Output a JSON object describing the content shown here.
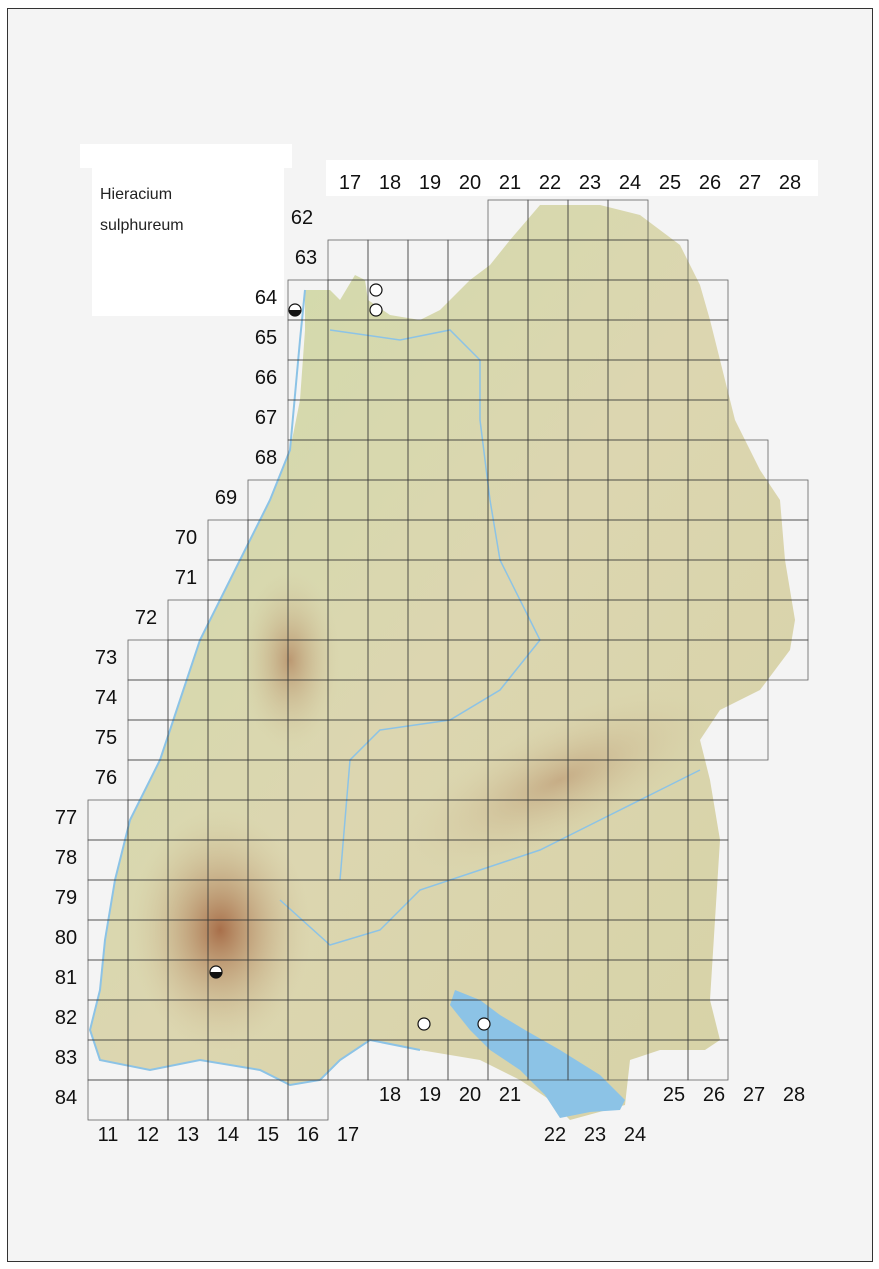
{
  "species": {
    "line1": "Hieracium",
    "line2": "sulphureum"
  },
  "grid": {
    "top_columns": [
      "17",
      "18",
      "19",
      "20",
      "21",
      "22",
      "23",
      "24",
      "25",
      "26",
      "27",
      "28"
    ],
    "bottom_columns_left": [
      "11",
      "12",
      "13",
      "14",
      "15",
      "16",
      "17"
    ],
    "bottom_columns_mid": [
      "18",
      "19",
      "20",
      "21"
    ],
    "bottom_columns_low": [
      "22",
      "23",
      "24"
    ],
    "bottom_columns_right": [
      "25",
      "26",
      "27",
      "28"
    ],
    "rows": [
      "62",
      "63",
      "64",
      "65",
      "66",
      "67",
      "68",
      "69",
      "70",
      "71",
      "72",
      "73",
      "74",
      "75",
      "76",
      "77",
      "78",
      "79",
      "80",
      "81",
      "82",
      "83",
      "84"
    ]
  },
  "records": [
    {
      "symbol": "half-filled",
      "column": 16,
      "row": 64.75
    },
    {
      "symbol": "half-filled",
      "column": 14,
      "row": 81.3
    },
    {
      "symbol": "open",
      "column": 18,
      "row": 64.25
    },
    {
      "symbol": "open",
      "column": 18,
      "row": 64.75
    },
    {
      "symbol": "open",
      "column": 19.2,
      "row": 82.6
    },
    {
      "symbol": "open",
      "column": 20.7,
      "row": 82.6
    }
  ],
  "colors": {
    "land": "#d9d7a8",
    "lowland": "#c9d9a4",
    "mountain": "#b98a5c",
    "water": "#8cc3e6",
    "grid": "#333333"
  }
}
